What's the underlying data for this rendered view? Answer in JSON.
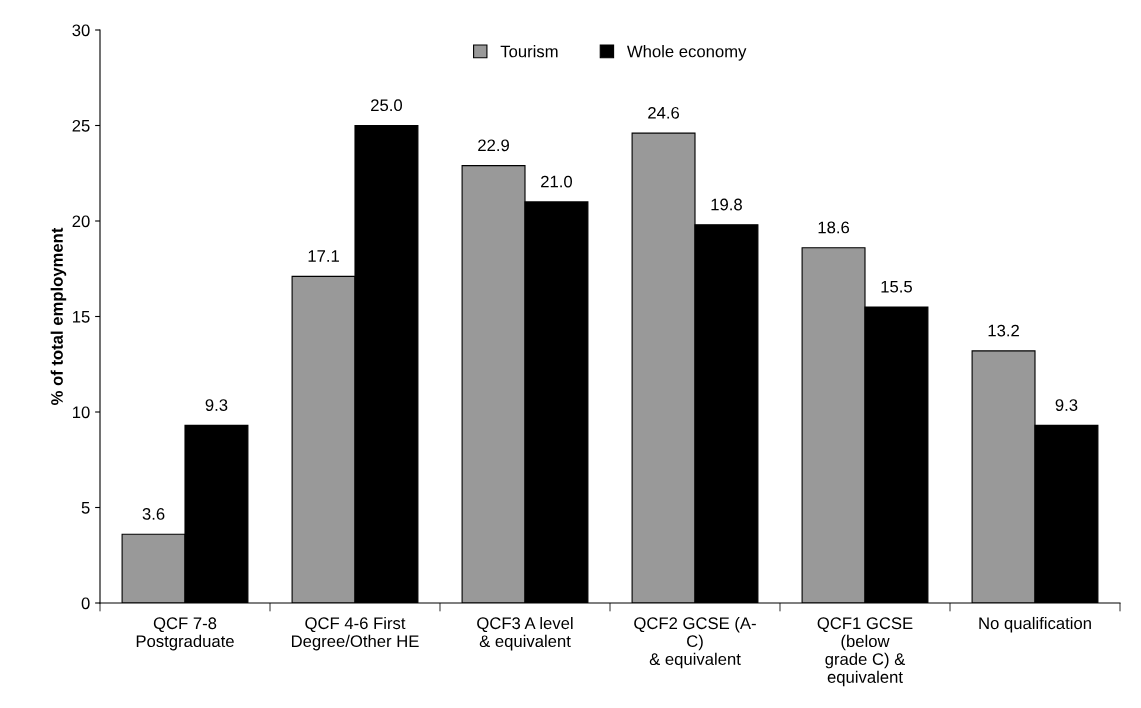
{
  "chart_data": {
    "type": "bar",
    "ylabel": "% of total employment",
    "categories": [
      "QCF 7-8\nPostgraduate",
      "QCF 4-6 First\nDegree/Other HE",
      "QCF3 A level\n& equivalent",
      "QCF2 GCSE (A-\nC)\n& equivalent",
      "QCF1 GCSE\n(below\ngrade C) &\nequivalent",
      "No qualification"
    ],
    "series": [
      {
        "name": "Tourism",
        "color": "#999999",
        "values": [
          3.6,
          17.1,
          22.9,
          24.6,
          18.6,
          13.2
        ],
        "value_labels": [
          "3.6",
          "17.1",
          "22.9",
          "24.6",
          "18.6",
          "13.2"
        ]
      },
      {
        "name": "Whole economy",
        "color": "#000000",
        "values": [
          9.3,
          25.0,
          21.0,
          19.8,
          15.5,
          9.3
        ],
        "value_labels": [
          "9.3",
          "25.0",
          "21.0",
          "19.8",
          "15.5",
          "9.3"
        ]
      }
    ],
    "ylim": [
      0,
      30
    ],
    "yticks": [
      0,
      5,
      10,
      15,
      20,
      25,
      30
    ],
    "grid": false,
    "legend": "top"
  }
}
